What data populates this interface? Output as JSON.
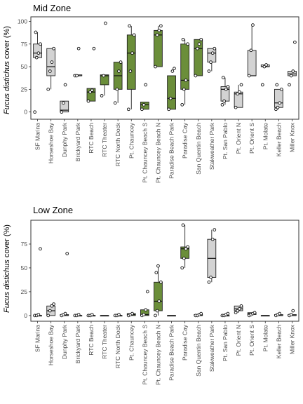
{
  "colors": {
    "native": "#6b8e3a",
    "other": "#d3d3d3"
  },
  "chart_data": [
    {
      "type": "box",
      "title": "Mid Zone",
      "ylabel_plain": "cover (%)",
      "ylabel_italic": "Fucus distichus",
      "ylim": [
        -8,
        105
      ],
      "yticks": [
        0,
        25,
        50,
        75,
        100
      ],
      "categories": [
        "SF Marina",
        "Horseshoe Bay",
        "Dunphy Park",
        "Brickyard Park",
        "RTC Beach",
        "RTC Theater",
        "RTC North Dock",
        "Pt. Chauncey",
        "Pt. Chauncey Beach S",
        "Pt. Chauncey Beach N",
        "Paradise Beach Park",
        "Paradise Cay",
        "San Quentin Beach",
        "Stakweather Park",
        "Pt. San Pablo",
        "Pt. Orient N",
        "Pt. Orient S",
        "Pt. Molate",
        "Keller Beach",
        "Miller Knox"
      ],
      "boxes": [
        {
          "q1": 60,
          "median": 65,
          "q3": 75,
          "wmin": 60,
          "wmax": 88,
          "group": "other",
          "points": [
            0,
            60,
            65,
            75,
            88
          ]
        },
        {
          "q1": 40,
          "median": 50,
          "q3": 70,
          "wmin": 25,
          "wmax": 70,
          "group": "other",
          "points": [
            25,
            45,
            55,
            70
          ]
        },
        {
          "q1": 0,
          "median": 2,
          "q3": 12,
          "wmin": 0,
          "wmax": 12,
          "group": "other",
          "points": [
            0,
            10,
            30
          ]
        },
        {
          "q1": 40,
          "median": 40,
          "q3": 41,
          "wmin": 40,
          "wmax": 41,
          "group": "other",
          "points": [
            40,
            40,
            70
          ]
        },
        {
          "q1": 12,
          "median": 22,
          "q3": 26,
          "wmin": 12,
          "wmax": 26,
          "group": "native",
          "points": [
            12,
            22,
            24,
            70
          ]
        },
        {
          "q1": 30,
          "median": 40,
          "q3": 41,
          "wmin": 18,
          "wmax": 41,
          "group": "native",
          "points": [
            18,
            40,
            98
          ]
        },
        {
          "q1": 25,
          "median": 40,
          "q3": 55,
          "wmin": 10,
          "wmax": 55,
          "group": "native",
          "points": [
            10,
            25,
            45,
            55
          ]
        },
        {
          "q1": 25,
          "median": 65,
          "q3": 85,
          "wmin": 3,
          "wmax": 95,
          "group": "native",
          "points": [
            3,
            45,
            65,
            85,
            95
          ]
        },
        {
          "q1": 3,
          "median": 8,
          "q3": 11,
          "wmin": 3,
          "wmax": 11,
          "group": "native",
          "points": [
            3,
            8,
            30
          ]
        },
        {
          "q1": 50,
          "median": 85,
          "q3": 90,
          "wmin": 50,
          "wmax": 95,
          "group": "native",
          "points": [
            50,
            85,
            90,
            95
          ]
        },
        {
          "q1": 3,
          "median": 15,
          "q3": 40,
          "wmin": 3,
          "wmax": 40,
          "group": "native",
          "points": [
            3,
            15,
            45,
            48
          ]
        },
        {
          "q1": 25,
          "median": 35,
          "q3": 75,
          "wmin": 8,
          "wmax": 80,
          "group": "native",
          "points": [
            8,
            25,
            35,
            75,
            80
          ]
        },
        {
          "q1": 40,
          "median": 70,
          "q3": 80,
          "wmin": 40,
          "wmax": 80,
          "group": "native",
          "points": [
            40,
            70,
            75,
            80
          ]
        },
        {
          "q1": 55,
          "median": 65,
          "q3": 70,
          "wmin": 45,
          "wmax": 70,
          "group": "other",
          "points": [
            45,
            55,
            65,
            70
          ]
        },
        {
          "q1": 12,
          "median": 25,
          "q3": 28,
          "wmin": 8,
          "wmax": 38,
          "group": "other",
          "points": [
            8,
            12,
            25,
            28,
            38
          ]
        },
        {
          "q1": 5,
          "median": 20,
          "q3": 22,
          "wmin": 5,
          "wmax": 30,
          "group": "other",
          "points": [
            5,
            20,
            22,
            30
          ]
        },
        {
          "q1": 40,
          "median": 40,
          "q3": 68,
          "wmin": 40,
          "wmax": 96,
          "group": "other",
          "points": [
            40,
            68,
            96
          ]
        },
        {
          "q1": 50,
          "median": 50,
          "q3": 52,
          "wmin": 50,
          "wmax": 52,
          "group": "other",
          "points": [
            30,
            50,
            52
          ]
        },
        {
          "q1": 5,
          "median": 10,
          "q3": 25,
          "wmin": 3,
          "wmax": 25,
          "group": "other",
          "points": [
            3,
            5,
            10,
            25,
            30
          ]
        },
        {
          "q1": 40,
          "median": 42,
          "q3": 45,
          "wmin": 40,
          "wmax": 45,
          "group": "other",
          "points": [
            30,
            40,
            45,
            77
          ]
        }
      ]
    },
    {
      "type": "box",
      "title": "Low Zone",
      "ylabel_plain": "cover (%)",
      "ylabel_italic": "Fucus distichus",
      "ylim": [
        -6,
        100
      ],
      "yticks": [
        0,
        25,
        50,
        75
      ],
      "categories": [
        "SF Marina",
        "Horseshoe Bay",
        "Dunphy Park",
        "Brickyard Park",
        "RTC Beach",
        "RTC Theater",
        "RTC North Dock",
        "Pt. Chauncey",
        "Pt. Chauncey Beach S",
        "Pt. Chauncey Beach N",
        "Paradise Beach Park",
        "Paradise Cay",
        "San Quentin Beach",
        "Stakweather Park",
        "Pt. San Pablo",
        "Pt. Orient N",
        "Pt. Orient S",
        "Pt. Molate",
        "Keller Beach",
        "Miller Knox"
      ],
      "boxes": [
        {
          "q1": 0,
          "median": 0,
          "q3": 0,
          "wmin": 0,
          "wmax": 0,
          "group": "other",
          "points": [
            0,
            0,
            1,
            70
          ]
        },
        {
          "q1": 0,
          "median": 5,
          "q3": 10,
          "wmin": 0,
          "wmax": 12,
          "group": "other",
          "points": [
            0,
            5,
            10,
            12
          ]
        },
        {
          "q1": 0,
          "median": 0,
          "q3": 1,
          "wmin": 0,
          "wmax": 2,
          "group": "other",
          "points": [
            0,
            1,
            2,
            65
          ]
        },
        {
          "q1": 0,
          "median": 0,
          "q3": 0,
          "wmin": 0,
          "wmax": 1,
          "group": "other",
          "points": [
            0,
            0,
            1
          ]
        },
        {
          "q1": 0,
          "median": 0,
          "q3": 0,
          "wmin": 0,
          "wmax": 0,
          "group": "native",
          "points": [
            0,
            0,
            1
          ]
        },
        {
          "q1": 0,
          "median": 0,
          "q3": 0,
          "wmin": 0,
          "wmax": 0,
          "group": "native",
          "points": []
        },
        {
          "q1": 0,
          "median": 0,
          "q3": 0,
          "wmin": 0,
          "wmax": 0,
          "group": "native",
          "points": [
            0,
            0,
            1
          ]
        },
        {
          "q1": 0,
          "median": 1,
          "q3": 2,
          "wmin": 0,
          "wmax": 2,
          "group": "native",
          "points": [
            0,
            1,
            2
          ]
        },
        {
          "q1": 0,
          "median": 1,
          "q3": 6,
          "wmin": 0,
          "wmax": 6,
          "group": "native",
          "points": [
            0,
            1,
            6,
            25
          ]
        },
        {
          "q1": 5,
          "median": 15,
          "q3": 35,
          "wmin": 0,
          "wmax": 52,
          "group": "native",
          "points": [
            0,
            5,
            15,
            35,
            45,
            52
          ]
        },
        {
          "q1": 0,
          "median": 0,
          "q3": 0,
          "wmin": 0,
          "wmax": 0,
          "group": "native",
          "points": []
        },
        {
          "q1": 60,
          "median": 70,
          "q3": 72,
          "wmin": 50,
          "wmax": 95,
          "group": "native",
          "points": [
            50,
            60,
            70,
            72,
            95
          ]
        },
        {
          "q1": 0,
          "median": 0,
          "q3": 1,
          "wmin": 0,
          "wmax": 1,
          "group": "native",
          "points": [
            0,
            0,
            1,
            2
          ]
        },
        {
          "q1": 40,
          "median": 60,
          "q3": 80,
          "wmin": 35,
          "wmax": 90,
          "group": "other",
          "points": [
            35,
            40,
            80,
            90
          ]
        },
        {
          "q1": 0,
          "median": 0,
          "q3": 0,
          "wmin": 0,
          "wmax": 1,
          "group": "other",
          "points": [
            0,
            0,
            1,
            2
          ]
        },
        {
          "q1": 5,
          "median": 7,
          "q3": 10,
          "wmin": 3,
          "wmax": 10,
          "group": "other",
          "points": [
            3,
            5,
            7,
            10
          ]
        },
        {
          "q1": 1,
          "median": 2,
          "q3": 3,
          "wmin": 0,
          "wmax": 3,
          "group": "other",
          "points": [
            0,
            1,
            2,
            3
          ]
        },
        {
          "q1": 0,
          "median": 0,
          "q3": 0,
          "wmin": 0,
          "wmax": 0,
          "group": "other",
          "points": []
        },
        {
          "q1": 0,
          "median": 0,
          "q3": 1,
          "wmin": 0,
          "wmax": 1,
          "group": "other",
          "points": [
            0,
            1,
            2
          ]
        },
        {
          "q1": 0,
          "median": 0,
          "q3": 1,
          "wmin": 0,
          "wmax": 1,
          "group": "other",
          "points": [
            0,
            1,
            5
          ]
        }
      ]
    }
  ]
}
